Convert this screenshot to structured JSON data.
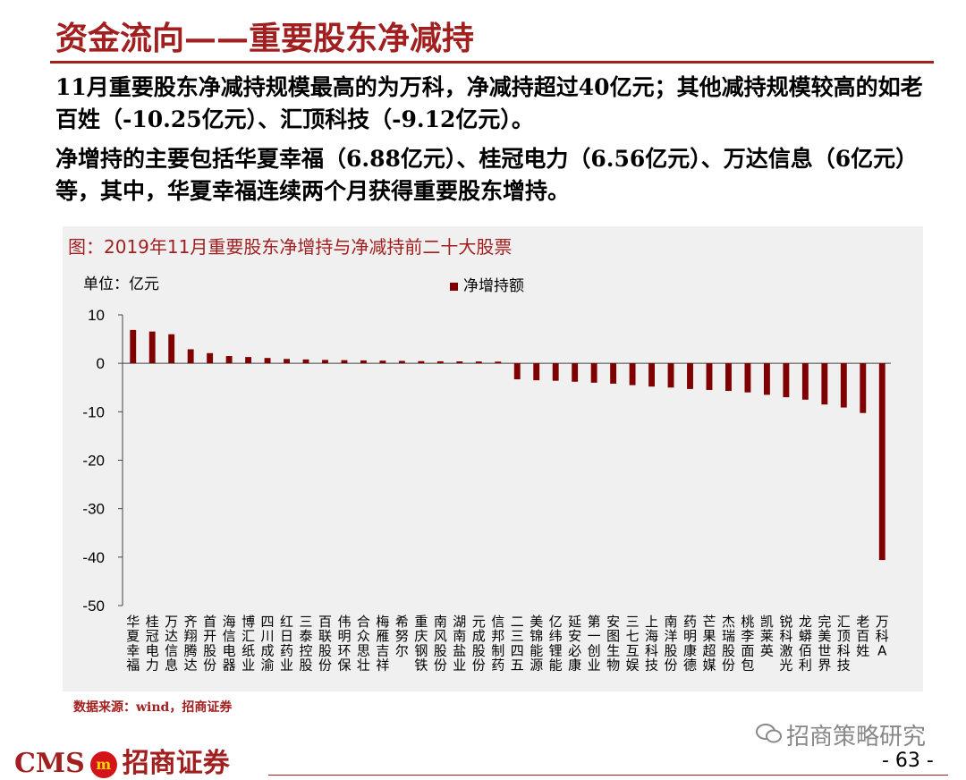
{
  "title": "资金流向——重要股东净减持",
  "paragraph_1": "11月重要股东净减持规模最高的为万科，净减持超过40亿元；其他减持规模较高的如老百姓（-10.25亿元）、汇顶科技（-9.12亿元）。",
  "paragraph_2": "净增持的主要包括华夏幸福（6.88亿元）、桂冠电力（6.56亿元）、万达信息（6亿元）等，其中，华夏幸福连续两个月获得重要股东增持。",
  "chart_title": "图：2019年11月重要股东净增持与净减持前二十大股票",
  "source": "数据来源：wind，招商证券",
  "wechat_label": "招商策略研究",
  "logo": {
    "latin": "CMS",
    "badge": "m",
    "cn": "招商证券"
  },
  "page_number": "- 63 -",
  "colors": {
    "accent": "#a21f1f",
    "bar": "#7f0000",
    "panel": "#f0f0f0"
  },
  "chart_data": {
    "type": "bar",
    "title": "图：2019年11月重要股东净增持与净减持前二十大股票",
    "unit": "单位：亿元",
    "legend_position": "top-center",
    "ylim": [
      -50,
      10
    ],
    "yticks": [
      10,
      0,
      -10,
      -20,
      -30,
      -40,
      -50
    ],
    "categories": [
      "华夏幸福",
      "桂冠电力",
      "万达信息",
      "齐翔腾达",
      "首开股份",
      "海信电器",
      "博汇纸业",
      "四川成渝",
      "红日药业",
      "三泰控股",
      "百联股份",
      "伟明环保",
      "合众思壮",
      "梅雁吉祥",
      "希努尔",
      "重庆钢铁",
      "南风股份",
      "湖南盐业",
      "元成股份",
      "信邦制药",
      "二三四五",
      "美锦能源",
      "亿纬锂能",
      "延安必康",
      "第一创业",
      "安图生物",
      "三七互娱",
      "上海科技",
      "南洋股份",
      "药明康德",
      "芒果超媒",
      "杰瑞股份",
      "桃李面包",
      "凯莱英",
      "锐科激光",
      "龙蟒佰利",
      "完美世界",
      "汇顶科技",
      "老百姓",
      "万科A"
    ],
    "series": [
      {
        "name": "净增持额",
        "values": [
          6.88,
          6.56,
          6.0,
          2.9,
          2.1,
          1.5,
          1.3,
          1.1,
          0.9,
          0.8,
          0.7,
          0.65,
          0.6,
          0.55,
          0.5,
          0.45,
          0.42,
          0.4,
          0.38,
          0.35,
          -3.3,
          -3.5,
          -3.6,
          -3.8,
          -4.0,
          -4.2,
          -4.5,
          -4.8,
          -5.0,
          -5.3,
          -5.5,
          -5.7,
          -6.0,
          -6.5,
          -7.0,
          -7.5,
          -8.5,
          -9.12,
          -10.25,
          -40.6
        ]
      }
    ]
  }
}
